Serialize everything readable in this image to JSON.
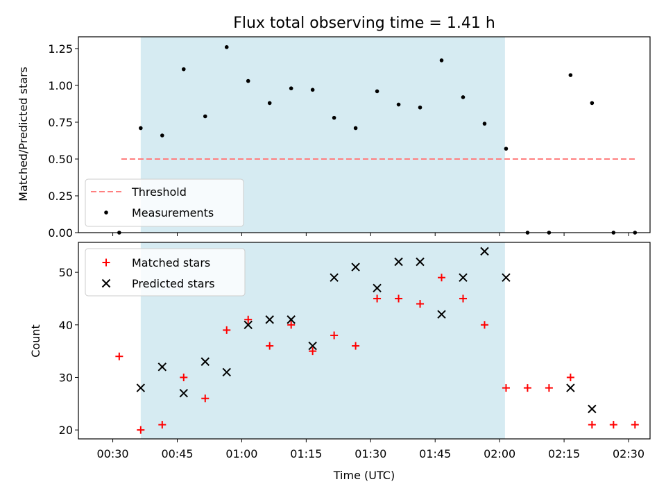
{
  "chart_data": [
    {
      "type": "scatter",
      "title": "Flux total observing time = 1.41 h",
      "xlabel": "",
      "ylabel": "Matched/Predicted stars",
      "x_range": [
        "00:22",
        "02:35"
      ],
      "ylim": [
        0,
        1.33
      ],
      "yticks": [
        "0.00",
        "0.25",
        "0.50",
        "0.75",
        "1.00",
        "1.25"
      ],
      "shaded_region": {
        "start": "00:36:30",
        "end": "02:01:15",
        "color": "#add8e6"
      },
      "threshold": {
        "name": "Threshold",
        "value": 0.5,
        "x_start": "00:32",
        "x_end": "02:32",
        "color": "#ff7f7f"
      },
      "legend": {
        "placement": "lower-left",
        "entries": [
          "Threshold",
          "Measurements"
        ]
      },
      "series": [
        {
          "name": "Measurements",
          "color": "#000000",
          "x": [
            "00:31:30",
            "00:36:30",
            "00:41:30",
            "00:46:30",
            "00:51:30",
            "00:56:30",
            "01:01:30",
            "01:06:30",
            "01:11:30",
            "01:16:30",
            "01:21:30",
            "01:26:30",
            "01:31:30",
            "01:36:30",
            "01:41:30",
            "01:46:30",
            "01:51:30",
            "01:56:30",
            "02:01:30",
            "02:06:30",
            "02:11:30",
            "02:16:30",
            "02:21:30",
            "02:26:30",
            "02:31:30"
          ],
          "y": [
            0,
            0.71,
            0.66,
            1.11,
            0.79,
            1.26,
            1.03,
            0.88,
            0.98,
            0.97,
            0.78,
            0.71,
            0.96,
            0.87,
            0.85,
            1.17,
            0.92,
            0.74,
            0.57,
            0,
            0,
            1.07,
            0.88,
            0,
            0
          ]
        }
      ]
    },
    {
      "type": "scatter",
      "title": "",
      "xlabel": "Time (UTC)",
      "ylabel": "Count",
      "x_range": [
        "00:22",
        "02:35"
      ],
      "xticks": [
        "00:30",
        "00:45",
        "01:00",
        "01:15",
        "01:30",
        "01:45",
        "02:00",
        "02:15",
        "02:30"
      ],
      "ylim": [
        18.3,
        55.7
      ],
      "yticks": [
        "20",
        "30",
        "40",
        "50"
      ],
      "shaded_region": {
        "start": "00:36:30",
        "end": "02:01:15",
        "color": "#add8e6"
      },
      "legend": {
        "placement": "upper-left",
        "entries": [
          "Matched stars",
          "Predicted stars"
        ]
      },
      "series": [
        {
          "name": "Matched stars",
          "marker": "plus",
          "color": "#ff0000",
          "x": [
            "00:31:30",
            "00:36:30",
            "00:41:30",
            "00:46:30",
            "00:51:30",
            "00:56:30",
            "01:01:30",
            "01:06:30",
            "01:11:30",
            "01:16:30",
            "01:21:30",
            "01:26:30",
            "01:31:30",
            "01:36:30",
            "01:41:30",
            "01:46:30",
            "01:51:30",
            "01:56:30",
            "02:01:30",
            "02:06:30",
            "02:11:30",
            "02:16:30",
            "02:21:30",
            "02:26:30",
            "02:31:30"
          ],
          "y": [
            34,
            20,
            21,
            30,
            26,
            39,
            41,
            36,
            40,
            35,
            38,
            36,
            45,
            45,
            44,
            49,
            45,
            40,
            28,
            28,
            28,
            30,
            21,
            21,
            21
          ]
        },
        {
          "name": "Predicted stars",
          "marker": "x",
          "color": "#000000",
          "x": [
            "00:36:30",
            "00:41:30",
            "00:46:30",
            "00:51:30",
            "00:56:30",
            "01:01:30",
            "01:06:30",
            "01:11:30",
            "01:16:30",
            "01:21:30",
            "01:26:30",
            "01:31:30",
            "01:36:30",
            "01:41:30",
            "01:46:30",
            "01:51:30",
            "01:56:30",
            "02:01:30",
            "02:16:30",
            "02:21:30"
          ],
          "y": [
            28,
            32,
            27,
            33,
            31,
            40,
            41,
            41,
            36,
            49,
            51,
            47,
            52,
            52,
            42,
            49,
            54,
            49,
            28,
            24
          ]
        }
      ]
    }
  ]
}
